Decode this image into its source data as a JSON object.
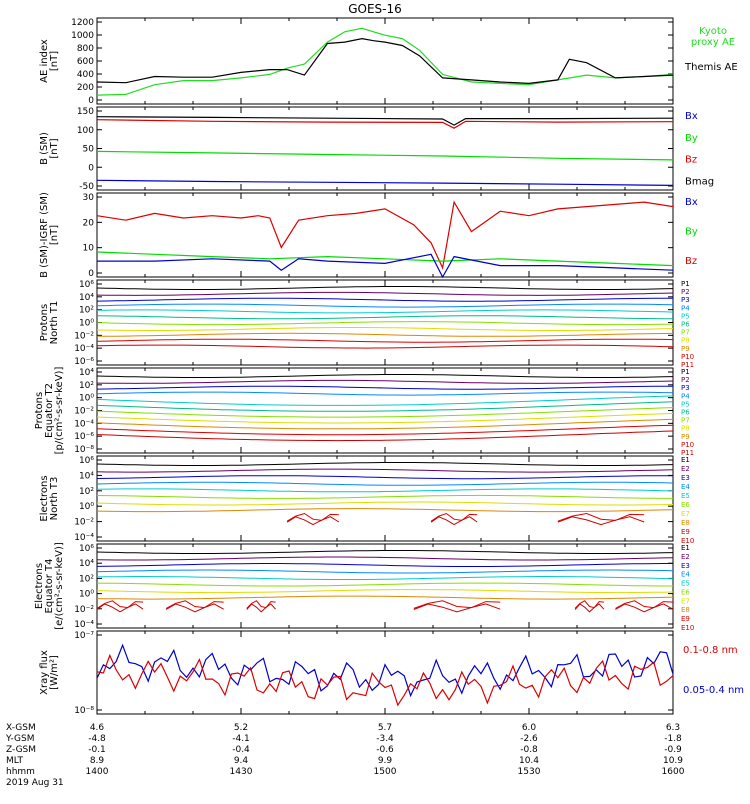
{
  "title": "GOES-16",
  "colors": {
    "black": "#000000",
    "green": "#00dd00",
    "blue": "#0000cc",
    "red": "#dd0000",
    "ae_green": "#22dd22"
  },
  "chart_data": [
    {
      "type": "line",
      "ylabel": [
        "AE index",
        "[nT]"
      ],
      "yticks": [
        "0",
        "200",
        "400",
        "600",
        "800",
        "1000",
        "1200"
      ],
      "ylim": [
        0,
        1250
      ],
      "legend": [
        {
          "label": "Kyoto",
          "color": "#22dd22"
        },
        {
          "label": "proxy AE",
          "color": "#22dd22"
        },
        {
          "label": "Themis AE",
          "color": "#000000"
        }
      ],
      "series": [
        {
          "name": "Kyoto proxy AE",
          "color": "#22dd22",
          "x": [
            0,
            0.05,
            0.1,
            0.15,
            0.2,
            0.25,
            0.3,
            0.33,
            0.36,
            0.4,
            0.43,
            0.46,
            0.48,
            0.5,
            0.53,
            0.56,
            0.6,
            0.65,
            0.7,
            0.75,
            0.8,
            0.85,
            0.9,
            0.95,
            1.0
          ],
          "y": [
            130,
            140,
            280,
            340,
            340,
            380,
            430,
            520,
            580,
            900,
            1050,
            1100,
            1050,
            1000,
            950,
            780,
            430,
            320,
            300,
            280,
            350,
            420,
            380,
            400,
            430
          ]
        },
        {
          "name": "Themis AE",
          "color": "#000000",
          "x": [
            0,
            0.05,
            0.1,
            0.15,
            0.2,
            0.25,
            0.3,
            0.33,
            0.36,
            0.4,
            0.43,
            0.46,
            0.48,
            0.5,
            0.53,
            0.56,
            0.6,
            0.65,
            0.7,
            0.75,
            0.8,
            0.82,
            0.85,
            0.9,
            0.95,
            1.0
          ],
          "y": [
            320,
            310,
            400,
            390,
            390,
            460,
            500,
            500,
            420,
            880,
            900,
            950,
            920,
            900,
            850,
            700,
            380,
            350,
            320,
            300,
            350,
            650,
            600,
            380,
            400,
            420
          ]
        }
      ]
    },
    {
      "type": "line",
      "ylabel": [
        "B (SM)",
        "[nT]"
      ],
      "yticks": [
        "-50",
        "0",
        "50",
        "100",
        "150"
      ],
      "ylim": [
        -60,
        155
      ],
      "legend": [
        {
          "label": "Bx",
          "color": "#0000cc"
        },
        {
          "label": "By",
          "color": "#00dd00"
        },
        {
          "label": "Bz",
          "color": "#dd0000"
        },
        {
          "label": "Bmag",
          "color": "#000000"
        }
      ],
      "series": [
        {
          "name": "Bmag",
          "color": "#000000",
          "x": [
            0,
            0.2,
            0.4,
            0.6,
            0.62,
            0.64,
            0.8,
            1.0
          ],
          "y": [
            130,
            128,
            126,
            124,
            108,
            125,
            125,
            126
          ]
        },
        {
          "name": "Bz",
          "color": "#dd0000",
          "x": [
            0,
            0.2,
            0.4,
            0.6,
            0.62,
            0.64,
            0.8,
            1.0
          ],
          "y": [
            122,
            118,
            116,
            115,
            100,
            118,
            116,
            117
          ]
        },
        {
          "name": "By",
          "color": "#00dd00",
          "x": [
            0,
            0.2,
            0.4,
            0.6,
            0.8,
            1.0
          ],
          "y": [
            40,
            36,
            32,
            28,
            22,
            18
          ]
        },
        {
          "name": "Bx",
          "color": "#0000cc",
          "x": [
            0,
            0.2,
            0.4,
            0.6,
            0.8,
            1.0
          ],
          "y": [
            -35,
            -38,
            -40,
            -42,
            -45,
            -48
          ]
        }
      ]
    },
    {
      "type": "line",
      "ylabel": [
        "B (SM)-IGRF (SM)",
        "[nT]"
      ],
      "yticks": [
        "0",
        "10",
        "20",
        "30"
      ],
      "ylim": [
        -5,
        32
      ],
      "legend": [
        {
          "label": "Bx",
          "color": "#0000cc"
        },
        {
          "label": "By",
          "color": "#00dd00"
        },
        {
          "label": "Bz",
          "color": "#dd0000"
        }
      ],
      "series": [
        {
          "name": "Bz",
          "color": "#dd0000",
          "x": [
            0,
            0.05,
            0.1,
            0.15,
            0.2,
            0.25,
            0.28,
            0.3,
            0.32,
            0.35,
            0.4,
            0.45,
            0.5,
            0.55,
            0.58,
            0.6,
            0.62,
            0.65,
            0.7,
            0.75,
            0.8,
            0.85,
            0.9,
            0.95,
            1.0
          ],
          "y": [
            22,
            20,
            23,
            21,
            22,
            21,
            22,
            21,
            8,
            20,
            22,
            23,
            25,
            18,
            10,
            -1,
            28,
            15,
            24,
            22,
            25,
            26,
            27,
            28,
            26
          ]
        },
        {
          "name": "By",
          "color": "#00dd00",
          "x": [
            0,
            0.1,
            0.2,
            0.3,
            0.4,
            0.5,
            0.6,
            0.7,
            0.8,
            0.9,
            1.0
          ],
          "y": [
            6,
            5,
            4,
            3,
            4,
            3,
            2,
            3,
            2,
            1,
            0
          ]
        },
        {
          "name": "Bx",
          "color": "#0000cc",
          "x": [
            0,
            0.1,
            0.2,
            0.3,
            0.32,
            0.35,
            0.4,
            0.5,
            0.58,
            0.6,
            0.62,
            0.7,
            0.8,
            0.9,
            1.0
          ],
          "y": [
            2,
            2,
            3,
            2,
            -2,
            3,
            2,
            1,
            5,
            -5,
            4,
            0,
            0,
            -1,
            -2
          ]
        }
      ]
    },
    {
      "type": "line",
      "ylabel": [
        "Protons",
        "North T1"
      ],
      "yticks": [
        "10⁻⁶",
        "10⁻⁴",
        "10⁻²",
        "10⁰",
        "10²",
        "10⁴",
        "10⁶"
      ],
      "legend": [
        {
          "label": "P1",
          "color": "#000000"
        },
        {
          "label": "P2",
          "color": "#660066"
        },
        {
          "label": "P3",
          "color": "#0000cc"
        },
        {
          "label": "P4",
          "color": "#0088ff"
        },
        {
          "label": "P5",
          "color": "#00cccc"
        },
        {
          "label": "P6",
          "color": "#00bb88"
        },
        {
          "label": "P7",
          "color": "#88dd00"
        },
        {
          "label": "P8",
          "color": "#dddd00"
        },
        {
          "label": "P9",
          "color": "#dd8800"
        },
        {
          "label": "P10",
          "color": "#dd0000"
        },
        {
          "label": "P11",
          "color": "#cc0000"
        }
      ]
    },
    {
      "type": "line",
      "ylabel": [
        "Protons",
        "Equator T2",
        "[p/(cm²-s-sr-keV)]"
      ],
      "yticks": [
        "10⁻⁸",
        "10⁻⁶",
        "10⁻⁴",
        "10⁻²",
        "10⁰",
        "10²",
        "10⁴"
      ],
      "legend": [
        {
          "label": "P1",
          "color": "#000000"
        },
        {
          "label": "P2",
          "color": "#660066"
        },
        {
          "label": "P3",
          "color": "#0000cc"
        },
        {
          "label": "P4",
          "color": "#0088ff"
        },
        {
          "label": "P5",
          "color": "#00cccc"
        },
        {
          "label": "P6",
          "color": "#00bb88"
        },
        {
          "label": "P7",
          "color": "#88dd00"
        },
        {
          "label": "P8",
          "color": "#dddd00"
        },
        {
          "label": "P9",
          "color": "#dd8800"
        },
        {
          "label": "P10",
          "color": "#dd0000"
        },
        {
          "label": "P11",
          "color": "#cc0000"
        }
      ]
    },
    {
      "type": "line",
      "ylabel": [
        "Electrons",
        "North T3"
      ],
      "yticks": [
        "10⁻⁴",
        "10⁻²",
        "10⁰",
        "10²",
        "10⁴",
        "10⁶"
      ],
      "legend": [
        {
          "label": "E1",
          "color": "#000000"
        },
        {
          "label": "E2",
          "color": "#660066"
        },
        {
          "label": "E3",
          "color": "#0000cc"
        },
        {
          "label": "E4",
          "color": "#0088ff"
        },
        {
          "label": "E5",
          "color": "#00cccc"
        },
        {
          "label": "E6",
          "color": "#88dd00"
        },
        {
          "label": "E7",
          "color": "#dddd00"
        },
        {
          "label": "E8",
          "color": "#dd8800"
        },
        {
          "label": "E9",
          "color": "#dd0000"
        },
        {
          "label": "E10",
          "color": "#cc0000"
        }
      ]
    },
    {
      "type": "line",
      "ylabel": [
        "Electrons",
        "Equator T4",
        "[e/(cm²-s-sr-keV)]"
      ],
      "yticks": [
        "10⁻⁴",
        "10⁻²",
        "10⁰",
        "10²",
        "10⁴",
        "10⁶"
      ],
      "legend": [
        {
          "label": "E1",
          "color": "#000000"
        },
        {
          "label": "E2",
          "color": "#660066"
        },
        {
          "label": "E3",
          "color": "#0000cc"
        },
        {
          "label": "E4",
          "color": "#0088ff"
        },
        {
          "label": "E5",
          "color": "#00cccc"
        },
        {
          "label": "E6",
          "color": "#88dd00"
        },
        {
          "label": "E7",
          "color": "#dddd00"
        },
        {
          "label": "E8",
          "color": "#dd8800"
        },
        {
          "label": "E9",
          "color": "#dd0000"
        },
        {
          "label": "E10",
          "color": "#cc0000"
        }
      ]
    },
    {
      "type": "line",
      "ylabel": [
        "Xray flux",
        "[W/m²]"
      ],
      "yticks": [
        "10⁻⁸",
        "10⁻⁷"
      ],
      "legend": [
        {
          "label": "0.1-0.8 nm",
          "color": "#dd0000"
        },
        {
          "label": "0.05-0.4 nm",
          "color": "#0000cc"
        }
      ]
    }
  ],
  "footer": {
    "rows": [
      {
        "label": "X-GSM",
        "values": [
          "4.6",
          "5.2",
          "5.7",
          "6.0",
          "6.3"
        ]
      },
      {
        "label": "Y-GSM",
        "values": [
          "-4.8",
          "-4.1",
          "-3.4",
          "-2.6",
          "-1.8"
        ]
      },
      {
        "label": "Z-GSM",
        "values": [
          "-0.1",
          "-0.4",
          "-0.6",
          "-0.8",
          "-0.9"
        ]
      },
      {
        "label": "MLT",
        "values": [
          "8.9",
          "9.4",
          "9.9",
          "10.4",
          "10.9"
        ]
      },
      {
        "label": "hhmm",
        "values": [
          "1400",
          "1430",
          "1500",
          "1530",
          "1600"
        ]
      }
    ],
    "date": "2019 Aug 31"
  }
}
